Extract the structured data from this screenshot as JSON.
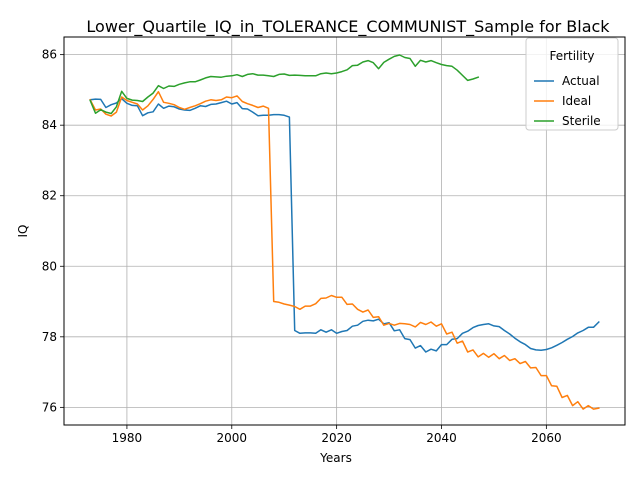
{
  "chart_data": {
    "type": "line",
    "title": "Lower_Quartile_IQ_in_TOLERANCE_COMMUNIST_Sample for Black",
    "xlabel": "Years",
    "ylabel": "IQ",
    "xlim": [
      1968,
      2075
    ],
    "ylim": [
      75.5,
      86.5
    ],
    "xticks": [
      1980,
      2000,
      2020,
      2040,
      2060
    ],
    "yticks": [
      76,
      78,
      80,
      82,
      84,
      86
    ],
    "grid": true,
    "legend": {
      "title": "Fertility",
      "placement": "top-right"
    },
    "series": [
      {
        "name": "Actual",
        "color": "#1f77b4",
        "points": [
          [
            1973,
            84.72
          ],
          [
            1974,
            84.74
          ],
          [
            1975,
            84.73
          ],
          [
            1976,
            84.5
          ],
          [
            1977,
            84.58
          ],
          [
            1978,
            84.63
          ],
          [
            1979,
            84.75
          ],
          [
            1980,
            84.62
          ],
          [
            1981,
            84.56
          ],
          [
            1982,
            84.55
          ],
          [
            1983,
            84.27
          ],
          [
            1984,
            84.35
          ],
          [
            1985,
            84.38
          ],
          [
            1986,
            84.6
          ],
          [
            1987,
            84.48
          ],
          [
            1988,
            84.54
          ],
          [
            1989,
            84.52
          ],
          [
            1990,
            84.46
          ],
          [
            1991,
            84.43
          ],
          [
            1992,
            84.42
          ],
          [
            1993,
            84.48
          ],
          [
            1994,
            84.55
          ],
          [
            1995,
            84.53
          ],
          [
            1996,
            84.59
          ],
          [
            1997,
            84.6
          ],
          [
            1998,
            84.64
          ],
          [
            1999,
            84.68
          ],
          [
            2000,
            84.6
          ],
          [
            2001,
            84.64
          ],
          [
            2002,
            84.47
          ],
          [
            2003,
            84.46
          ],
          [
            2004,
            84.37
          ],
          [
            2005,
            84.27
          ],
          [
            2006,
            84.28
          ],
          [
            2007,
            84.28
          ],
          [
            2008,
            84.3
          ],
          [
            2009,
            84.3
          ],
          [
            2010,
            84.28
          ],
          [
            2011,
            84.23
          ],
          [
            2012,
            78.18
          ],
          [
            2013,
            78.1
          ],
          [
            2014,
            78.11
          ],
          [
            2015,
            78.11
          ],
          [
            2016,
            78.1
          ],
          [
            2017,
            78.2
          ],
          [
            2018,
            78.13
          ],
          [
            2019,
            78.2
          ],
          [
            2020,
            78.1
          ],
          [
            2021,
            78.15
          ],
          [
            2022,
            78.18
          ],
          [
            2023,
            78.3
          ],
          [
            2024,
            78.33
          ],
          [
            2025,
            78.44
          ],
          [
            2026,
            78.47
          ],
          [
            2027,
            78.45
          ],
          [
            2028,
            78.5
          ],
          [
            2029,
            78.37
          ],
          [
            2030,
            78.4
          ],
          [
            2031,
            78.17
          ],
          [
            2032,
            78.2
          ],
          [
            2033,
            77.95
          ],
          [
            2034,
            77.92
          ],
          [
            2035,
            77.68
          ],
          [
            2036,
            77.75
          ],
          [
            2037,
            77.57
          ],
          [
            2038,
            77.65
          ],
          [
            2039,
            77.6
          ],
          [
            2040,
            77.78
          ],
          [
            2041,
            77.78
          ],
          [
            2042,
            77.93
          ],
          [
            2043,
            77.95
          ],
          [
            2044,
            78.1
          ],
          [
            2045,
            78.16
          ],
          [
            2046,
            78.26
          ],
          [
            2047,
            78.32
          ],
          [
            2048,
            78.35
          ],
          [
            2049,
            78.37
          ],
          [
            2050,
            78.31
          ],
          [
            2051,
            78.29
          ],
          [
            2052,
            78.18
          ],
          [
            2053,
            78.08
          ],
          [
            2054,
            77.96
          ],
          [
            2055,
            77.86
          ],
          [
            2056,
            77.78
          ],
          [
            2057,
            77.67
          ],
          [
            2058,
            77.63
          ],
          [
            2059,
            77.62
          ],
          [
            2060,
            77.64
          ],
          [
            2061,
            77.69
          ],
          [
            2062,
            77.76
          ],
          [
            2063,
            77.84
          ],
          [
            2064,
            77.93
          ],
          [
            2065,
            78.01
          ],
          [
            2066,
            78.11
          ],
          [
            2067,
            78.18
          ],
          [
            2068,
            78.27
          ],
          [
            2069,
            78.27
          ],
          [
            2070,
            78.42
          ]
        ]
      },
      {
        "name": "Ideal",
        "color": "#ff7f0e",
        "points": [
          [
            1973,
            84.72
          ],
          [
            1974,
            84.43
          ],
          [
            1975,
            84.46
          ],
          [
            1976,
            84.31
          ],
          [
            1977,
            84.26
          ],
          [
            1978,
            84.37
          ],
          [
            1979,
            84.8
          ],
          [
            1980,
            84.7
          ],
          [
            1981,
            84.65
          ],
          [
            1982,
            84.6
          ],
          [
            1983,
            84.43
          ],
          [
            1984,
            84.55
          ],
          [
            1985,
            84.73
          ],
          [
            1986,
            84.95
          ],
          [
            1987,
            84.65
          ],
          [
            1988,
            84.62
          ],
          [
            1989,
            84.58
          ],
          [
            1990,
            84.5
          ],
          [
            1991,
            84.45
          ],
          [
            1992,
            84.5
          ],
          [
            1993,
            84.55
          ],
          [
            1994,
            84.61
          ],
          [
            1995,
            84.68
          ],
          [
            1996,
            84.72
          ],
          [
            1997,
            84.7
          ],
          [
            1998,
            84.72
          ],
          [
            1999,
            84.8
          ],
          [
            2000,
            84.78
          ],
          [
            2001,
            84.83
          ],
          [
            2002,
            84.67
          ],
          [
            2003,
            84.61
          ],
          [
            2004,
            84.56
          ],
          [
            2005,
            84.5
          ],
          [
            2006,
            84.54
          ],
          [
            2007,
            84.48
          ],
          [
            2008,
            79.0
          ],
          [
            2009,
            78.98
          ],
          [
            2010,
            78.93
          ],
          [
            2011,
            78.9
          ],
          [
            2012,
            78.86
          ],
          [
            2013,
            78.78
          ],
          [
            2014,
            78.87
          ],
          [
            2015,
            78.87
          ],
          [
            2016,
            78.94
          ],
          [
            2017,
            79.09
          ],
          [
            2018,
            79.1
          ],
          [
            2019,
            79.17
          ],
          [
            2020,
            79.12
          ],
          [
            2021,
            79.12
          ],
          [
            2022,
            78.92
          ],
          [
            2023,
            78.93
          ],
          [
            2024,
            78.78
          ],
          [
            2025,
            78.7
          ],
          [
            2026,
            78.76
          ],
          [
            2027,
            78.55
          ],
          [
            2028,
            78.57
          ],
          [
            2029,
            78.33
          ],
          [
            2030,
            78.38
          ],
          [
            2031,
            78.33
          ],
          [
            2032,
            78.38
          ],
          [
            2033,
            78.37
          ],
          [
            2034,
            78.35
          ],
          [
            2035,
            78.28
          ],
          [
            2036,
            78.41
          ],
          [
            2037,
            78.35
          ],
          [
            2038,
            78.42
          ],
          [
            2039,
            78.3
          ],
          [
            2040,
            78.37
          ],
          [
            2041,
            78.08
          ],
          [
            2042,
            78.13
          ],
          [
            2043,
            77.82
          ],
          [
            2044,
            77.88
          ],
          [
            2045,
            77.57
          ],
          [
            2046,
            77.63
          ],
          [
            2047,
            77.43
          ],
          [
            2048,
            77.53
          ],
          [
            2049,
            77.42
          ],
          [
            2050,
            77.52
          ],
          [
            2051,
            77.38
          ],
          [
            2052,
            77.47
          ],
          [
            2053,
            77.33
          ],
          [
            2054,
            77.38
          ],
          [
            2055,
            77.24
          ],
          [
            2056,
            77.3
          ],
          [
            2057,
            77.12
          ],
          [
            2058,
            77.13
          ],
          [
            2059,
            76.9
          ],
          [
            2060,
            76.9
          ],
          [
            2061,
            76.61
          ],
          [
            2062,
            76.6
          ],
          [
            2063,
            76.28
          ],
          [
            2064,
            76.34
          ],
          [
            2065,
            76.05
          ],
          [
            2066,
            76.16
          ],
          [
            2067,
            75.95
          ],
          [
            2068,
            76.05
          ],
          [
            2069,
            75.95
          ],
          [
            2070,
            75.98
          ]
        ]
      },
      {
        "name": "Sterile",
        "color": "#2ca02c",
        "points": [
          [
            1973,
            84.7
          ],
          [
            1974,
            84.34
          ],
          [
            1975,
            84.44
          ],
          [
            1976,
            84.37
          ],
          [
            1977,
            84.33
          ],
          [
            1978,
            84.52
          ],
          [
            1979,
            84.96
          ],
          [
            1980,
            84.76
          ],
          [
            1981,
            84.71
          ],
          [
            1982,
            84.7
          ],
          [
            1983,
            84.67
          ],
          [
            1984,
            84.8
          ],
          [
            1985,
            84.91
          ],
          [
            1986,
            85.12
          ],
          [
            1987,
            85.04
          ],
          [
            1988,
            85.11
          ],
          [
            1989,
            85.1
          ],
          [
            1990,
            85.16
          ],
          [
            1991,
            85.2
          ],
          [
            1992,
            85.23
          ],
          [
            1993,
            85.23
          ],
          [
            1994,
            85.28
          ],
          [
            1995,
            85.34
          ],
          [
            1996,
            85.38
          ],
          [
            1997,
            85.37
          ],
          [
            1998,
            85.36
          ],
          [
            1999,
            85.39
          ],
          [
            2000,
            85.4
          ],
          [
            2001,
            85.43
          ],
          [
            2002,
            85.38
          ],
          [
            2003,
            85.44
          ],
          [
            2004,
            85.46
          ],
          [
            2005,
            85.42
          ],
          [
            2006,
            85.42
          ],
          [
            2007,
            85.4
          ],
          [
            2008,
            85.38
          ],
          [
            2009,
            85.44
          ],
          [
            2010,
            85.45
          ],
          [
            2011,
            85.41
          ],
          [
            2012,
            85.42
          ],
          [
            2013,
            85.41
          ],
          [
            2014,
            85.4
          ],
          [
            2015,
            85.4
          ],
          [
            2016,
            85.4
          ],
          [
            2017,
            85.46
          ],
          [
            2018,
            85.48
          ],
          [
            2019,
            85.46
          ],
          [
            2020,
            85.48
          ],
          [
            2021,
            85.52
          ],
          [
            2022,
            85.57
          ],
          [
            2023,
            85.69
          ],
          [
            2024,
            85.7
          ],
          [
            2025,
            85.79
          ],
          [
            2026,
            85.83
          ],
          [
            2027,
            85.77
          ],
          [
            2028,
            85.6
          ],
          [
            2029,
            85.78
          ],
          [
            2030,
            85.87
          ],
          [
            2031,
            85.95
          ],
          [
            2032,
            85.99
          ],
          [
            2033,
            85.92
          ],
          [
            2034,
            85.89
          ],
          [
            2035,
            85.67
          ],
          [
            2036,
            85.84
          ],
          [
            2037,
            85.79
          ],
          [
            2038,
            85.83
          ],
          [
            2039,
            85.77
          ],
          [
            2040,
            85.72
          ],
          [
            2041,
            85.69
          ],
          [
            2042,
            85.67
          ],
          [
            2043,
            85.56
          ],
          [
            2044,
            85.41
          ],
          [
            2045,
            85.27
          ],
          [
            2046,
            85.31
          ],
          [
            2047,
            85.36
          ]
        ]
      }
    ]
  }
}
